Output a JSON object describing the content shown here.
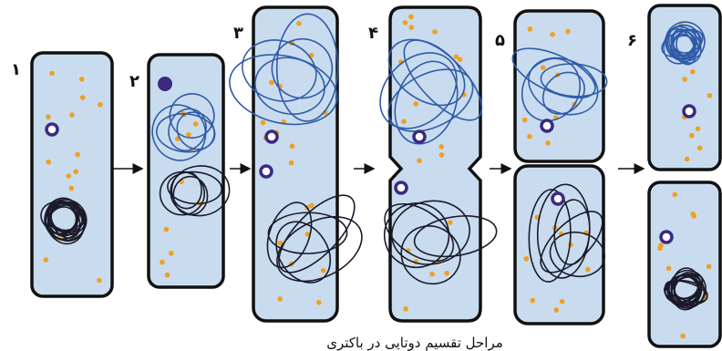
{
  "labels": [
    "۱",
    "۲",
    "۳",
    "۴",
    "۵",
    "۶"
  ],
  "caption": "مراحل تقسیم دوتایی در باکتری"
}
